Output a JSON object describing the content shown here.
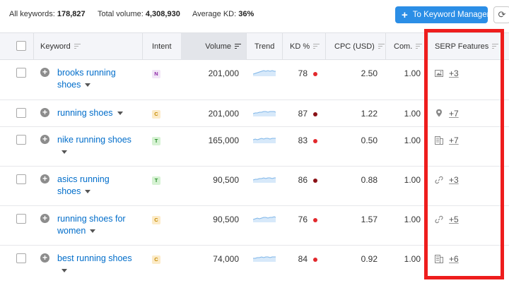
{
  "summary": {
    "all_keywords_label": "All keywords:",
    "all_keywords_value": "178,827",
    "total_volume_label": "Total volume:",
    "total_volume_value": "4,308,930",
    "avg_kd_label": "Average KD:",
    "avg_kd_value": "36%"
  },
  "toolbar": {
    "keyword_manager_label": "To Keyword Manager",
    "plus_glyph": "+",
    "refresh_glyph": "⟳"
  },
  "columns": {
    "keyword": "Keyword",
    "intent": "Intent",
    "volume": "Volume",
    "trend": "Trend",
    "kd": "KD %",
    "cpc": "CPC (USD)",
    "com": "Com.",
    "serp": "SERP Features"
  },
  "rows": [
    {
      "keyword": "brooks running shoes",
      "intent": "N",
      "volume": "201,000",
      "kd": "78",
      "cpc": "2.50",
      "com": "1.00",
      "serp_icon": "image-icon",
      "serp_more": "+3"
    },
    {
      "keyword": "running shoes",
      "intent": "C",
      "volume": "201,000",
      "kd": "87",
      "cpc": "1.22",
      "com": "1.00",
      "serp_icon": "map-pin-icon",
      "serp_more": "+7"
    },
    {
      "keyword": "nike running shoes",
      "intent": "T",
      "volume": "165,000",
      "kd": "83",
      "cpc": "0.50",
      "com": "1.00",
      "serp_icon": "knowledge-panel-icon",
      "serp_more": "+7"
    },
    {
      "keyword": "asics running shoes",
      "intent": "T",
      "volume": "90,500",
      "kd": "86",
      "cpc": "0.88",
      "com": "1.00",
      "serp_icon": "link-icon",
      "serp_more": "+3"
    },
    {
      "keyword": "running shoes for women",
      "intent": "C",
      "volume": "90,500",
      "kd": "76",
      "cpc": "1.57",
      "com": "1.00",
      "serp_icon": "link-icon",
      "serp_more": "+5"
    },
    {
      "keyword": "best running shoes",
      "intent": "C",
      "volume": "74,000",
      "kd": "84",
      "cpc": "0.92",
      "com": "1.00",
      "serp_icon": "knowledge-panel-icon",
      "serp_more": "+6"
    }
  ],
  "colors": {
    "accent_button": "#2b8ee6",
    "keyword_link": "#006dca",
    "kd_red": "#e2282c",
    "kd_dark_red": "#8a1116",
    "highlight_border": "#ee1d1d",
    "intent_N_bg": "#f2e6f7",
    "intent_N_fg": "#8e2aa7",
    "intent_C_bg": "#fcebc8",
    "intent_C_fg": "#c58a00",
    "intent_T_bg": "#d6f2d3",
    "intent_T_fg": "#238b25"
  }
}
